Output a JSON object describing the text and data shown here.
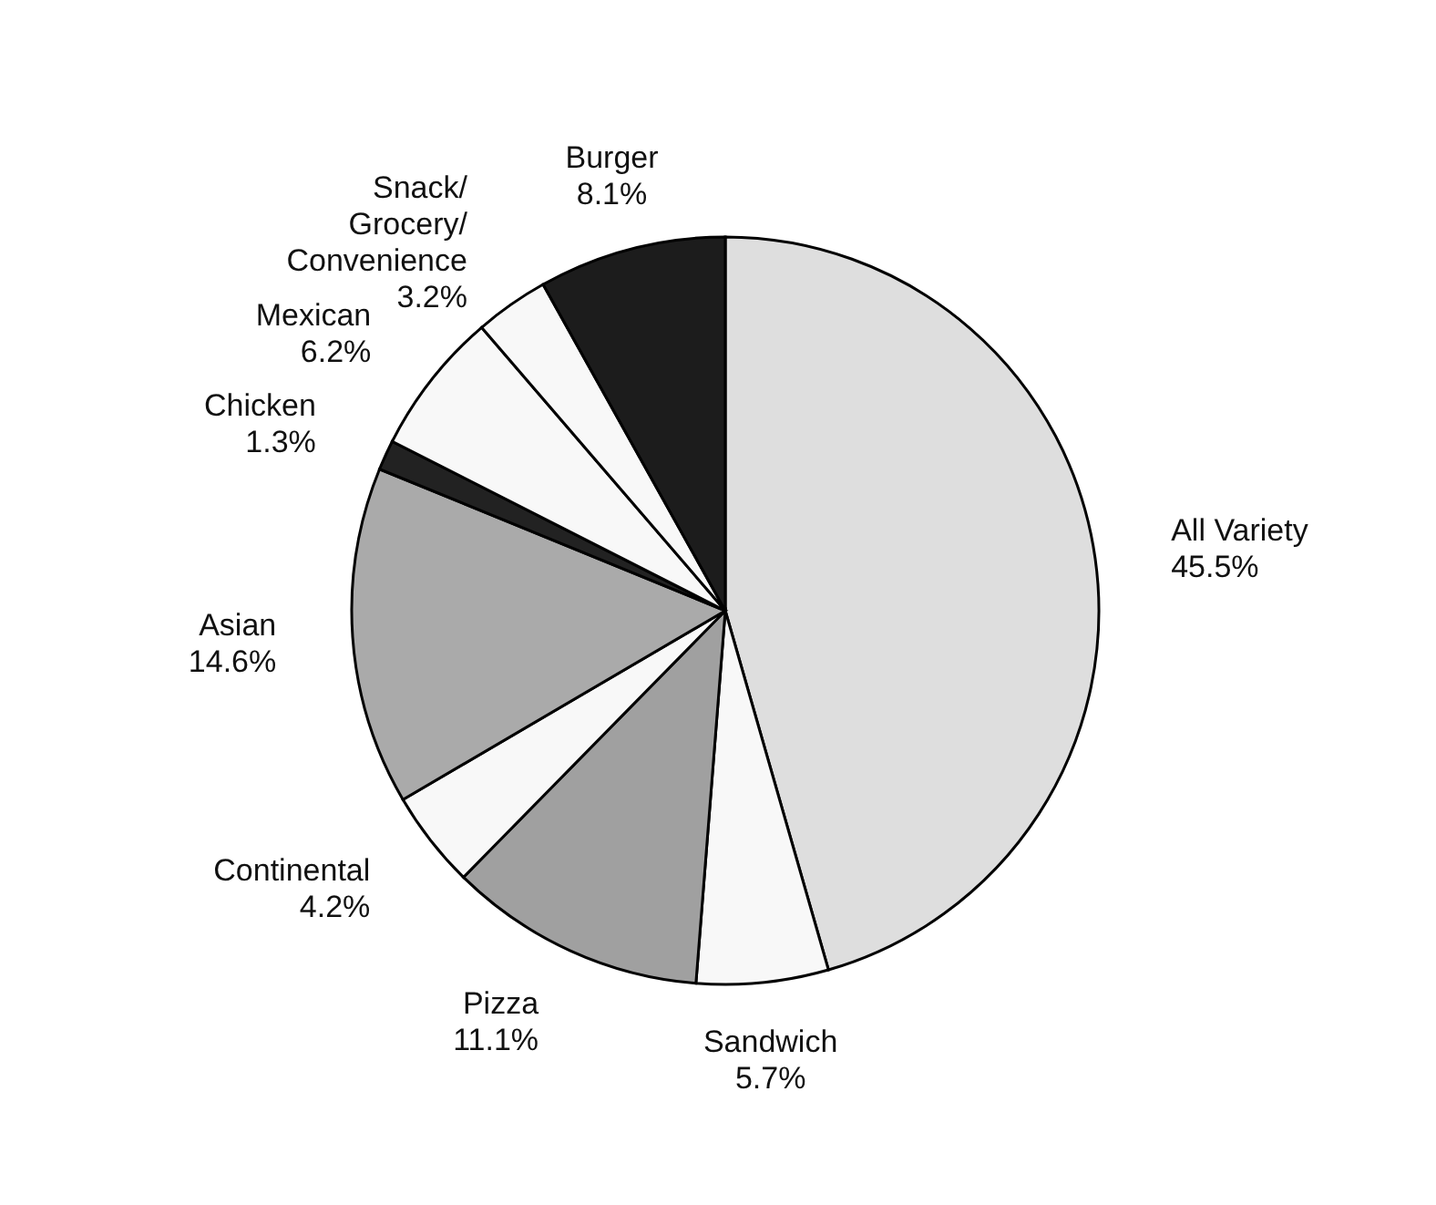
{
  "chart_data": {
    "type": "pie",
    "categories": [
      "All Variety",
      "Sandwich",
      "Pizza",
      "Continental",
      "Asian",
      "Chicken",
      "Mexican",
      "Snack/ Grocery/ Convenience",
      "Burger"
    ],
    "values": [
      45.5,
      5.7,
      11.1,
      4.2,
      14.6,
      1.3,
      6.2,
      3.2,
      8.1
    ],
    "value_labels": [
      "45.5%",
      "5.7%",
      "11.1%",
      "4.2%",
      "14.6%",
      "1.3%",
      "6.2%",
      "3.2%",
      "8.1%"
    ],
    "colors": [
      "#dedede",
      "#f8f8f8",
      "#a0a0a0",
      "#f8f8f8",
      "#aaaaaa",
      "#222222",
      "#f8f8f8",
      "#f8f8f8",
      "#1c1c1c"
    ]
  }
}
